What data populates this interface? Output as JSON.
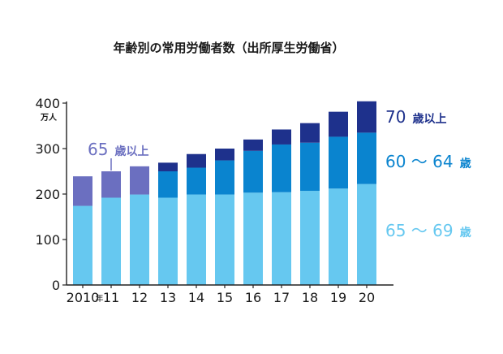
{
  "chart_data": {
    "type": "bar",
    "stacked": true,
    "title": "年齢別の常用労働者数（出所厚生労働省）",
    "ylabel": "万人",
    "ylim": [
      0,
      400
    ],
    "yticks": [
      0,
      100,
      200,
      300,
      400
    ],
    "categories": [
      "2010",
      "11",
      "12",
      "13",
      "14",
      "15",
      "16",
      "17",
      "18",
      "19",
      "20"
    ],
    "year_suffix": "年",
    "series": [
      {
        "name": "65 ～ 69",
        "color": "#66c8f0",
        "values": [
          174,
          192,
          199,
          192,
          199,
          199,
          203,
          204,
          207,
          212,
          222
        ]
      },
      {
        "name": "60 ～ 64",
        "color": "#0a84cf",
        "values": [
          0,
          0,
          0,
          58,
          59,
          75,
          92,
          105,
          106,
          114,
          113
        ]
      },
      {
        "name": "70",
        "color": "#1e318c",
        "values": [
          0,
          0,
          0,
          19,
          30,
          26,
          25,
          33,
          43,
          55,
          69
        ]
      },
      {
        "name": "65",
        "color": "#6b6fc0",
        "values": [
          65,
          58,
          62,
          0,
          0,
          0,
          0,
          0,
          0,
          0,
          0
        ]
      }
    ],
    "annotations": {
      "over65": {
        "num": "65",
        "suffix": "歳以上",
        "color": "#6b6fc0"
      },
      "over70": {
        "num": "70",
        "suffix": "歳以上",
        "color": "#1e318c"
      },
      "age6064": {
        "num": "60 ～ 64",
        "suffix": "歳",
        "color": "#0a84cf"
      },
      "age6569": {
        "num": "65 ～ 69",
        "suffix": "歳",
        "color": "#66c8f0"
      }
    },
    "grid": false,
    "legend": "right"
  }
}
